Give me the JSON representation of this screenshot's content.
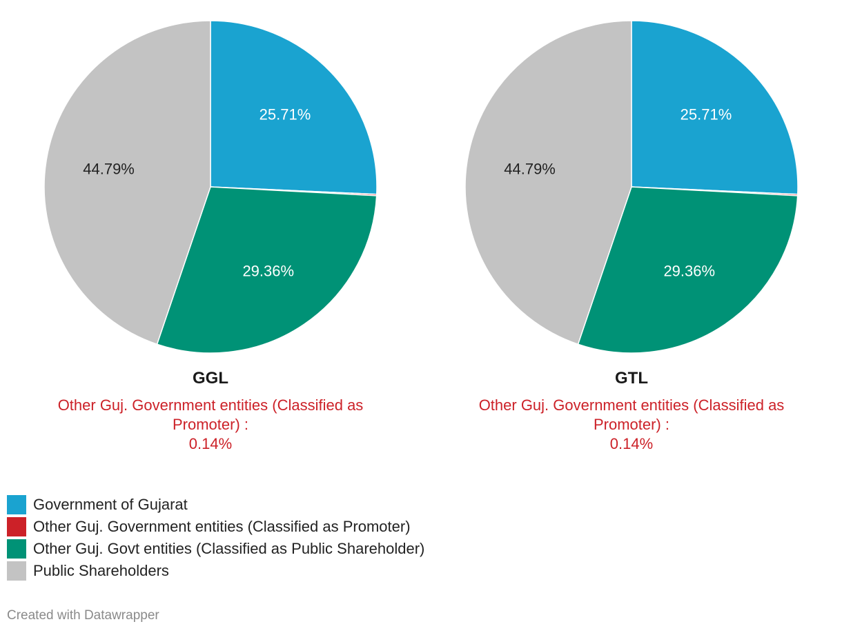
{
  "colors": {
    "Government of Gujarat": "#1aa3d0",
    "Other Guj. Government entities (Classified as Promoter)": "#cc2128",
    "Other Guj. Govt entities (Classified as Public Shareholder)": "#009276",
    "Public Shareholders": "#c3c3c3"
  },
  "label_colors": {
    "Government of Gujarat": "#ffffff",
    "Other Guj. Govt entities (Classified as Public Shareholder)": "#ffffff",
    "Public Shareholders": "#222222"
  },
  "chart_data": [
    {
      "type": "pie",
      "title": "GGL",
      "categories": [
        "Government of Gujarat",
        "Other Guj. Government entities (Classified as Promoter)",
        "Other Guj. Govt entities (Classified as Public Shareholder)",
        "Public Shareholders"
      ],
      "values": [
        25.71,
        0.14,
        29.36,
        44.79
      ],
      "value_labels": [
        "25.71%",
        "",
        "29.36%",
        "44.79%"
      ],
      "note_lines": [
        "Other Guj. Government entities (Classified as",
        "Promoter) :",
        "0.14%"
      ]
    },
    {
      "type": "pie",
      "title": "GTL",
      "categories": [
        "Government of Gujarat",
        "Other Guj. Government entities (Classified as Promoter)",
        "Other Guj. Govt entities (Classified as Public Shareholder)",
        "Public Shareholders"
      ],
      "values": [
        25.71,
        0.14,
        29.36,
        44.79
      ],
      "value_labels": [
        "25.71%",
        "",
        "29.36%",
        "44.79%"
      ],
      "note_lines": [
        "Other Guj. Government entities (Classified as",
        "Promoter) :",
        "0.14%"
      ]
    }
  ],
  "legend": [
    "Government of Gujarat",
    "Other Guj. Government entities (Classified as Promoter)",
    "Other Guj. Govt entities (Classified as Public Shareholder)",
    "Public Shareholders"
  ],
  "credit": "Created with Datawrapper"
}
